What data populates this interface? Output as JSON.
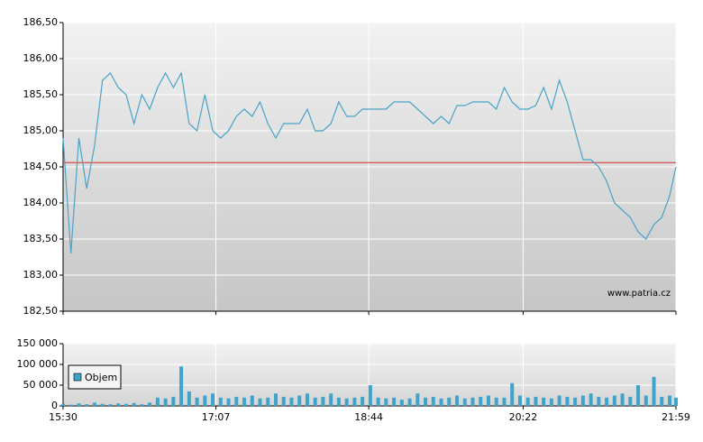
{
  "chart_data": [
    {
      "type": "line",
      "watermark": "www.patria.cz",
      "x": [
        "15:30",
        "15:35",
        "15:40",
        "15:45",
        "15:50",
        "15:55",
        "16:00",
        "16:05",
        "16:10",
        "16:15",
        "16:20",
        "16:25",
        "16:30",
        "16:35",
        "16:40",
        "16:45",
        "16:50",
        "16:55",
        "17:00",
        "17:05",
        "17:10",
        "17:15",
        "17:20",
        "17:25",
        "17:30",
        "17:35",
        "17:40",
        "17:45",
        "17:50",
        "17:55",
        "18:00",
        "18:05",
        "18:10",
        "18:15",
        "18:20",
        "18:25",
        "18:30",
        "18:35",
        "18:40",
        "18:45",
        "18:50",
        "18:55",
        "19:00",
        "19:05",
        "19:10",
        "19:15",
        "19:20",
        "19:25",
        "19:30",
        "19:35",
        "19:40",
        "19:45",
        "19:50",
        "19:55",
        "20:00",
        "20:05",
        "20:10",
        "20:15",
        "20:20",
        "20:25",
        "20:30",
        "20:35",
        "20:40",
        "20:45",
        "20:50",
        "20:55",
        "21:00",
        "21:05",
        "21:10",
        "21:15",
        "21:20",
        "21:25",
        "21:30",
        "21:35",
        "21:40",
        "21:45",
        "21:50",
        "21:55",
        "21:59"
      ],
      "series": [
        {
          "color": "#4aa3c8",
          "values": [
            184.9,
            183.3,
            184.9,
            184.2,
            184.8,
            185.7,
            185.8,
            185.6,
            185.5,
            185.1,
            185.5,
            185.3,
            185.6,
            185.8,
            185.6,
            185.8,
            185.1,
            185.0,
            185.5,
            185.0,
            184.9,
            185.0,
            185.2,
            185.3,
            185.2,
            185.4,
            185.1,
            184.9,
            185.1,
            185.1,
            185.1,
            185.3,
            185.0,
            185.0,
            185.1,
            185.4,
            185.2,
            185.2,
            185.3,
            185.3,
            185.3,
            185.3,
            185.4,
            185.4,
            185.4,
            185.3,
            185.2,
            185.1,
            185.2,
            185.1,
            185.35,
            185.35,
            185.4,
            185.4,
            185.4,
            185.3,
            185.6,
            185.4,
            185.3,
            185.3,
            185.35,
            185.6,
            185.3,
            185.7,
            185.4,
            185.0,
            184.6,
            184.6,
            184.5,
            184.3,
            184.0,
            183.9,
            183.8,
            183.6,
            183.5,
            183.7,
            183.8,
            184.1,
            184.5
          ]
        }
      ],
      "reference_line": {
        "value": 184.56,
        "color": "#d03030"
      },
      "xlim": [
        "15:30",
        "21:59"
      ],
      "ylim": [
        182.5,
        186.5
      ],
      "yticks": [
        {
          "value": 182.5,
          "label": "182,50"
        },
        {
          "value": 183,
          "label": "183,00"
        },
        {
          "value": 183.5,
          "label": "183,50"
        },
        {
          "value": 184,
          "label": "184,00"
        },
        {
          "value": 184.5,
          "label": "184,50"
        },
        {
          "value": 185,
          "label": "185,00"
        },
        {
          "value": 185.5,
          "label": "185,50"
        },
        {
          "value": 186,
          "label": "186,00"
        },
        {
          "value": 186.5,
          "label": "186,50"
        }
      ],
      "grid": true
    },
    {
      "type": "bar",
      "legend": "upper left",
      "x": [
        "15:30",
        "15:35",
        "15:40",
        "15:45",
        "15:50",
        "15:55",
        "16:00",
        "16:05",
        "16:10",
        "16:15",
        "16:20",
        "16:25",
        "16:30",
        "16:35",
        "16:40",
        "16:45",
        "16:50",
        "16:55",
        "17:00",
        "17:05",
        "17:10",
        "17:15",
        "17:20",
        "17:25",
        "17:30",
        "17:35",
        "17:40",
        "17:45",
        "17:50",
        "17:55",
        "18:00",
        "18:05",
        "18:10",
        "18:15",
        "18:20",
        "18:25",
        "18:30",
        "18:35",
        "18:40",
        "18:45",
        "18:50",
        "18:55",
        "19:00",
        "19:05",
        "19:10",
        "19:15",
        "19:20",
        "19:25",
        "19:30",
        "19:35",
        "19:40",
        "19:45",
        "19:50",
        "19:55",
        "20:00",
        "20:05",
        "20:10",
        "20:15",
        "20:20",
        "20:25",
        "20:30",
        "20:35",
        "20:40",
        "20:45",
        "20:50",
        "20:55",
        "21:00",
        "21:05",
        "21:10",
        "21:15",
        "21:20",
        "21:25",
        "21:30",
        "21:35",
        "21:40",
        "21:45",
        "21:50",
        "21:55",
        "21:59"
      ],
      "series": [
        {
          "name": "Objem",
          "color": "#3fa4cc",
          "values": [
            5000,
            3000,
            6000,
            4000,
            8000,
            5000,
            4000,
            6000,
            5000,
            7000,
            4000,
            8000,
            20000,
            18000,
            22000,
            95000,
            35000,
            20000,
            25000,
            30000,
            20000,
            18000,
            22000,
            20000,
            25000,
            18000,
            20000,
            30000,
            22000,
            20000,
            25000,
            30000,
            20000,
            22000,
            30000,
            20000,
            18000,
            20000,
            22000,
            50000,
            20000,
            18000,
            20000,
            15000,
            18000,
            30000,
            20000,
            22000,
            18000,
            20000,
            25000,
            18000,
            20000,
            22000,
            25000,
            20000,
            20000,
            55000,
            25000,
            20000,
            22000,
            20000,
            18000,
            25000,
            22000,
            20000,
            25000,
            30000,
            22000,
            20000,
            25000,
            30000,
            22000,
            50000,
            25000,
            70000,
            22000,
            25000,
            20000
          ]
        }
      ],
      "xlim": [
        "15:30",
        "21:59"
      ],
      "xticks": [
        "15:30",
        "17:07",
        "18:44",
        "20:22",
        "21:59"
      ],
      "ylim": [
        0,
        150000
      ],
      "yticks": [
        0,
        {
          "value": 50000,
          "label": "50 000"
        },
        {
          "value": 100000,
          "label": "100 000"
        },
        {
          "value": 150000,
          "label": "150 000"
        }
      ],
      "grid": true
    }
  ]
}
